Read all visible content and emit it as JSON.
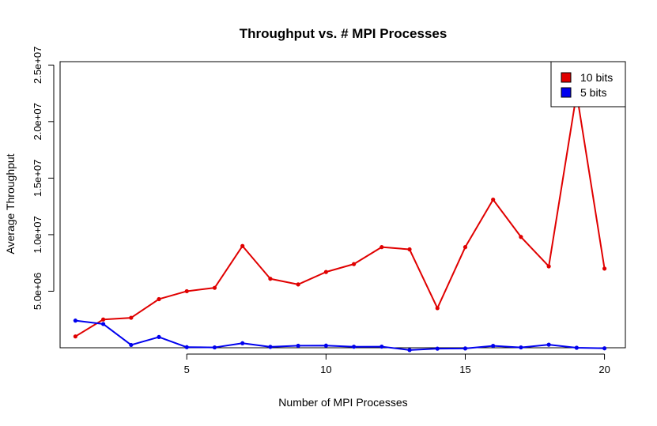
{
  "chart_data": {
    "type": "line",
    "title": "Throughput vs. # MPI Processes",
    "xlabel": "Number of MPI Processes",
    "ylabel": "Average Throughput",
    "x": [
      1,
      2,
      3,
      4,
      5,
      6,
      7,
      8,
      9,
      10,
      11,
      12,
      13,
      14,
      15,
      16,
      17,
      18,
      19,
      20
    ],
    "x_ticks": [
      5,
      10,
      15,
      20
    ],
    "x_tick_labels": [
      "5",
      "10",
      "15",
      "20"
    ],
    "y_ticks": [
      5000000,
      10000000,
      15000000,
      20000000,
      25000000
    ],
    "y_tick_labels": [
      "5.0e+06",
      "1.0e+07",
      "1.5e+07",
      "2.0e+07",
      "2.5e+07"
    ],
    "xlim": [
      0.45,
      20.75
    ],
    "ylim": [
      0,
      25300000
    ],
    "grid": false,
    "legend_position": "top-right",
    "series": [
      {
        "name": "10 bits",
        "color": "#e00000",
        "values": [
          1000000,
          2500000,
          2650000,
          4300000,
          5000000,
          5300000,
          9000000,
          6100000,
          5600000,
          6700000,
          7400000,
          8900000,
          8700000,
          3500000,
          8900000,
          13100000,
          9800000,
          7200000,
          22500000,
          7000000
        ]
      },
      {
        "name": "5 bits",
        "color": "#0000ee",
        "values": [
          2400000,
          2100000,
          250000,
          950000,
          50000,
          30000,
          400000,
          80000,
          180000,
          190000,
          90000,
          100000,
          -200000,
          -80000,
          -60000,
          170000,
          30000,
          270000,
          0,
          -50000
        ]
      }
    ]
  }
}
